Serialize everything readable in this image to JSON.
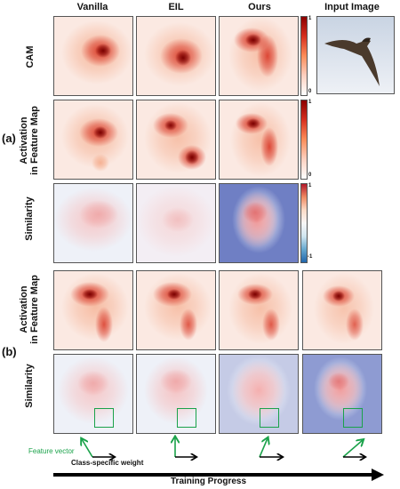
{
  "columns": [
    "Vanilla",
    "EIL",
    "Ours",
    "Input Image"
  ],
  "rows_a": [
    "CAM",
    "Activation\nin Feature Map",
    "Similarity"
  ],
  "rows_b": [
    "Activation\nin Feature Map",
    "Similarity"
  ],
  "part_labels": {
    "a": "(a)",
    "b": "(b)"
  },
  "colorbars": {
    "cam": {
      "top": "1",
      "bottom": "0"
    },
    "activation": {
      "top": "1",
      "bottom": "0"
    },
    "similarity": {
      "top": "1",
      "bottom": "-1"
    }
  },
  "legend": {
    "feature_vector": "Feature vector",
    "class_weight": "Class-specific weight"
  },
  "progress_label": "Training Progress",
  "colors": {
    "feature_arrow": "#1aa24a",
    "weight_arrow": "#000000",
    "heat_dark": "#8b0000",
    "sim_blue": "#6f7fc4"
  }
}
